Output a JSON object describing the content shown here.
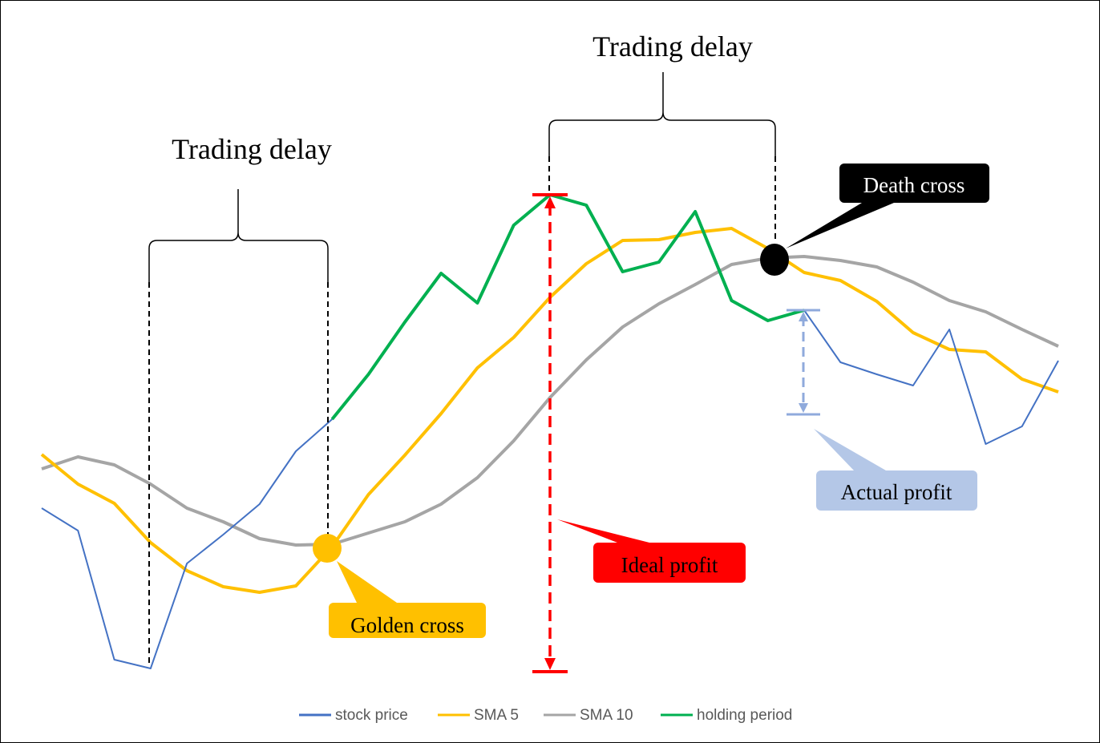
{
  "chart_data": {
    "type": "line",
    "annotations": [
      "Trading delay",
      "Trading delay",
      "Death cross",
      "Golden cross",
      "Ideal profit",
      "Actual profit"
    ],
    "x": [
      0,
      1,
      2,
      3,
      4,
      5,
      6,
      7,
      8,
      9,
      10,
      11,
      12,
      13,
      14,
      15,
      16,
      17,
      18,
      19,
      20,
      21,
      22,
      23,
      24,
      25,
      26,
      27,
      28
    ],
    "xlim": [
      0,
      28
    ],
    "ylim": [
      0,
      90
    ],
    "series": [
      {
        "name": "stock price",
        "color": "#4472c4",
        "values": [
          26.6,
          23.8,
          7.7,
          6.6,
          19.7,
          23.3,
          27.1,
          33.7,
          37.7,
          null,
          null,
          null,
          null,
          null,
          null,
          null,
          null,
          null,
          null,
          null,
          null,
          51.3,
          44.8,
          43.3,
          41.9,
          48.9,
          34.6,
          36.8,
          45.0
        ]
      },
      {
        "name": "SMA 5",
        "color": "#ffc000",
        "values": [
          33.3,
          29.6,
          27.2,
          22.3,
          18.8,
          16.8,
          16.1,
          16.9,
          21.8,
          28.3,
          33.2,
          38.4,
          44.1,
          47.9,
          52.9,
          57.1,
          60.0,
          60.1,
          61.0,
          61.5,
          59.0,
          56.0,
          55.0,
          52.4,
          48.5,
          46.4,
          46.1,
          42.7,
          41.1
        ]
      },
      {
        "name": "SMA 10",
        "color": "#a5a5a5",
        "values": [
          31.5,
          33.0,
          32.0,
          29.6,
          26.6,
          24.9,
          22.8,
          22.0,
          22.1,
          23.5,
          24.9,
          27.1,
          30.4,
          35.0,
          40.4,
          45.1,
          49.2,
          52.1,
          54.5,
          57.0,
          57.8,
          58.0,
          57.5,
          56.7,
          54.8,
          52.5,
          51.1,
          48.9,
          46.8
        ]
      },
      {
        "name": "holding period",
        "color": "#00b050",
        "values": [
          null,
          null,
          null,
          null,
          null,
          null,
          null,
          null,
          37.7,
          43.3,
          49.8,
          55.9,
          52.2,
          61.9,
          65.7,
          64.4,
          56.1,
          57.3,
          63.6,
          52.5,
          50.0,
          51.3,
          null,
          null,
          null,
          null,
          null,
          null,
          null
        ]
      }
    ]
  }
}
